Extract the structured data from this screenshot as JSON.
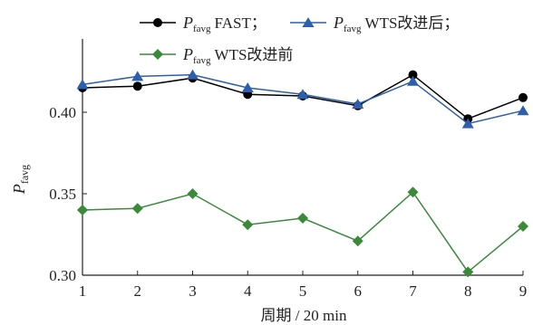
{
  "chart_data": {
    "type": "line",
    "title": "",
    "xlabel": "周期 / 20 min",
    "ylabel": {
      "main": "P",
      "sub": "favg"
    },
    "x": [
      1,
      2,
      3,
      4,
      5,
      6,
      7,
      8,
      9
    ],
    "xlim": [
      1,
      9
    ],
    "ylim": [
      0.3,
      0.445
    ],
    "yticks": [
      0.3,
      0.35,
      0.4
    ],
    "ytick_labels": [
      "0.30",
      "0.35",
      "0.40"
    ],
    "xtick_labels": [
      "1",
      "2",
      "3",
      "4",
      "5",
      "6",
      "7",
      "8",
      "9"
    ],
    "grid": false,
    "legend_position": "top",
    "series": [
      {
        "name": "P favg FAST；",
        "legend_main": "P",
        "legend_sub": "favg",
        "legend_suffix": "FAST；",
        "color": "#000000",
        "marker": "circle",
        "values": [
          0.415,
          0.416,
          0.421,
          0.411,
          0.41,
          0.404,
          0.423,
          0.396,
          0.409
        ]
      },
      {
        "name": "P favg WTS改进后；",
        "legend_main": "P",
        "legend_sub": "favg",
        "legend_suffix": "WTS改进后；",
        "color": "#2e5fac",
        "marker": "triangle",
        "values": [
          0.417,
          0.422,
          0.423,
          0.415,
          0.411,
          0.405,
          0.419,
          0.393,
          0.401
        ]
      },
      {
        "name": "P favg WTS改进前",
        "legend_main": "P",
        "legend_sub": "favg",
        "legend_suffix": "WTS改进前",
        "color": "#3a8a3a",
        "marker": "diamond",
        "values": [
          0.34,
          0.341,
          0.35,
          0.331,
          0.335,
          0.321,
          0.351,
          0.302,
          0.33
        ]
      }
    ]
  }
}
